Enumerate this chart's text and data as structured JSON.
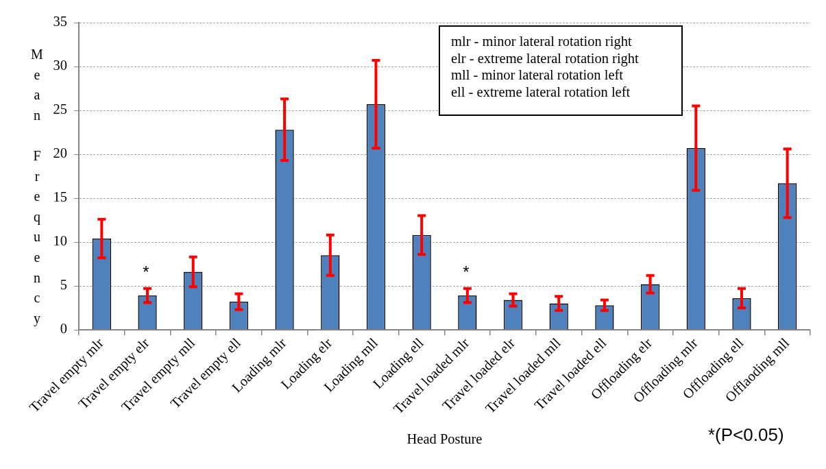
{
  "chart_data": {
    "type": "bar",
    "xlabel": "Head Posture",
    "ylabel": "Mean Frequency",
    "categories": [
      "Travel empty mlr",
      "Travel empty elr",
      "Travel empty mll",
      "Travel empty ell",
      "Loading mlr",
      "Loading elr",
      "Loading mll",
      "Loading ell",
      "Travel loaded mlr",
      "Travel loaded elr",
      "Travel loaded mll",
      "Travel loaded ell",
      "Offloading elr",
      "Offloading mlr",
      "Offloading ell",
      "Offlaoding mll"
    ],
    "values": [
      10.4,
      3.9,
      6.6,
      3.2,
      22.8,
      8.5,
      25.7,
      10.8,
      3.9,
      3.4,
      3.0,
      2.8,
      5.2,
      20.7,
      3.6,
      16.7
    ],
    "errors": [
      2.2,
      0.8,
      1.7,
      0.9,
      3.5,
      2.3,
      5.0,
      2.2,
      0.8,
      0.7,
      0.8,
      0.6,
      1.0,
      4.8,
      1.1,
      3.9
    ],
    "color": "#4f81bd",
    "ylim": [
      0,
      35
    ],
    "yticks": [
      0,
      5,
      10,
      15,
      20,
      25,
      30,
      35
    ],
    "grid": "y",
    "annotations": [
      "mlr - minor lateral rotation right\nelr - extreme lateral rotation right\nmll - minor lateral rotation left\nell - extreme lateral rotation left",
      "*(P<0.05)",
      {
        "text": "*",
        "x": "Travel empty elr",
        "y": 3.9
      },
      {
        "text": "*",
        "x": "Travel loaded mlr",
        "y": 3.9
      }
    ]
  }
}
